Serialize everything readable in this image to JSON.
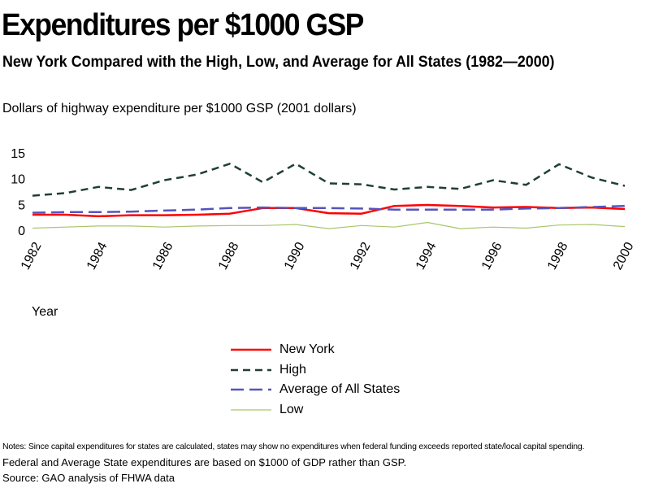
{
  "page": {
    "title": "Expenditures per $1000 GSP",
    "subtitle": "New York Compared with the High, Low, and Average for All States (1982—2000)",
    "units_label": "Dollars of highway expenditure per $1000 GSP  (2001 dollars)"
  },
  "notes": {
    "line1": "Notes: Since capital expenditures for states are calculated, states may show no expenditures when federal funding exceeds reported state/local capital spending.",
    "line2": "Federal and Average State expenditures are based on $1000 of GDP rather than GSP.",
    "line3": "Source: GAO  analysis of FHWA data"
  },
  "chart_data": {
    "type": "line",
    "title": "Expenditures per $1000 GSP",
    "subtitle": "New York Compared with the High, Low, and Average for All States (1982—2000)",
    "ylabel": "Dollars of highway expenditure per $1000 GSP  (2001 dollars)",
    "xlabel": "Year",
    "ylim": [
      0,
      15
    ],
    "yticks": [
      "0",
      "5",
      "10",
      "15"
    ],
    "x": [
      1982,
      1983,
      1984,
      1985,
      1986,
      1987,
      1988,
      1989,
      1990,
      1991,
      1992,
      1993,
      1994,
      1995,
      1996,
      1997,
      1998,
      1999,
      2000
    ],
    "xtick_labels": [
      "1982",
      "1984",
      "1986",
      "1988",
      "1990",
      "1992",
      "1994",
      "1996",
      "1998",
      "2000"
    ],
    "grid": false,
    "legend_position": "bottom-center",
    "series": [
      {
        "name": "New York",
        "color": "#ff0000",
        "style": "solid",
        "width": 2.5,
        "values": [
          3.0,
          3.0,
          2.7,
          2.9,
          2.9,
          3.0,
          3.2,
          4.3,
          4.3,
          3.3,
          3.2,
          4.7,
          4.9,
          4.7,
          4.4,
          4.5,
          4.3,
          4.4,
          4.1
        ]
      },
      {
        "name": "High",
        "color": "#1f3f35",
        "style": "dashed-short",
        "width": 2.5,
        "values": [
          6.7,
          7.2,
          8.4,
          7.8,
          9.7,
          10.8,
          12.9,
          9.3,
          12.9,
          9.1,
          8.9,
          7.9,
          8.4,
          8.0,
          9.7,
          8.8,
          12.8,
          10.2,
          8.6
        ]
      },
      {
        "name": "Average of All States",
        "color": "#5555bb",
        "style": "dashed-long",
        "width": 2.5,
        "values": [
          3.4,
          3.5,
          3.5,
          3.6,
          3.8,
          4.0,
          4.3,
          4.4,
          4.3,
          4.3,
          4.2,
          4.0,
          4.0,
          4.0,
          4.0,
          4.2,
          4.3,
          4.5,
          4.7
        ]
      },
      {
        "name": "Low",
        "color": "#a8c66c",
        "style": "solid",
        "width": 1.2,
        "values": [
          0.4,
          0.6,
          0.8,
          0.8,
          0.6,
          0.8,
          0.9,
          0.9,
          1.1,
          0.3,
          0.9,
          0.6,
          1.5,
          0.3,
          0.6,
          0.4,
          1.0,
          1.1,
          0.7
        ]
      }
    ]
  }
}
